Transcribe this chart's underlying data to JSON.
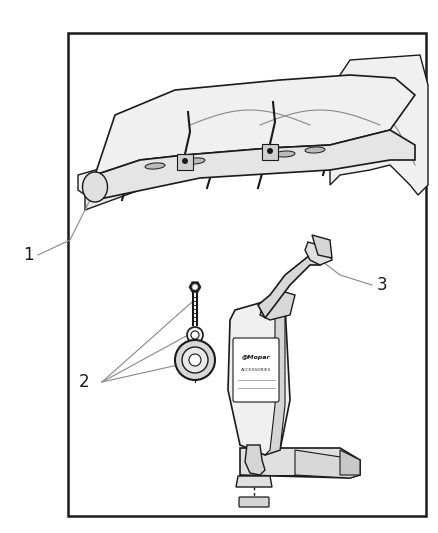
{
  "background_color": "#ffffff",
  "border_color": "#1a1a1a",
  "border_linewidth": 1.8,
  "line_color": "#1a1a1a",
  "mid_gray": "#888888",
  "light_gray": "#cccccc",
  "fill_light": "#f0f0f0",
  "fill_white": "#ffffff",
  "label_1": "1",
  "label_2": "2",
  "label_3": "3",
  "mopar_text": "@Mopar",
  "mopar_sub": "ACCESSORIES"
}
